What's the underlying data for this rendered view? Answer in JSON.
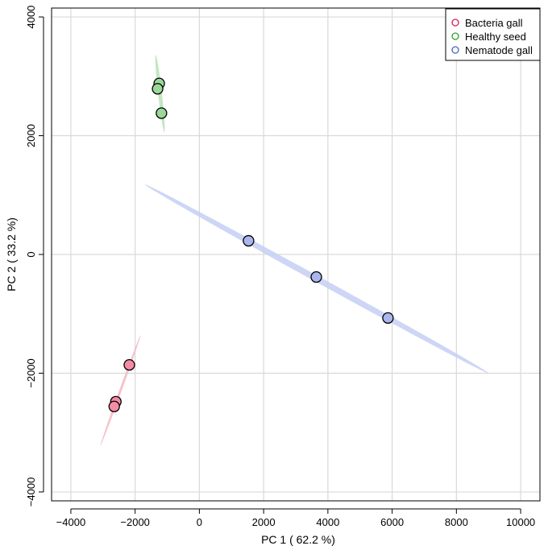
{
  "chart_data": {
    "type": "scatter",
    "title": "",
    "xlabel": "PC 1 ( 62.2 %)",
    "ylabel": "PC 2 ( 33.2 %)",
    "xlim": [
      -4600,
      10600
    ],
    "ylim": [
      -4150,
      4150
    ],
    "xticks": [
      -4000,
      -2000,
      0,
      2000,
      4000,
      6000,
      8000,
      10000
    ],
    "yticks": [
      -4000,
      -2000,
      0,
      2000,
      4000
    ],
    "xtick_labels": [
      "−4000",
      "−2000",
      "0",
      "2000",
      "4000",
      "6000",
      "8000",
      "10000"
    ],
    "ytick_labels": [
      "−4000",
      "−2000",
      "0",
      "2000",
      "4000"
    ],
    "grid": true,
    "legend_position": "top-right",
    "series": [
      {
        "name": "Bacteria gall",
        "color": "#d81b60",
        "fill": "#f48ca3",
        "ellipse_color": "#f2b8c4",
        "points": [
          {
            "x": -2600,
            "y": -2480
          },
          {
            "x": -2650,
            "y": -2560
          },
          {
            "x": -2180,
            "y": -1860
          }
        ],
        "ellipse": {
          "from": [
            -3080,
            -3220
          ],
          "to": [
            -1830,
            -1360
          ],
          "width": 70
        }
      },
      {
        "name": "Healthy seed",
        "color": "#2ca02c",
        "fill": "#9ad89a",
        "ellipse_color": "#b9e2b9",
        "points": [
          {
            "x": -1250,
            "y": 2880
          },
          {
            "x": -1300,
            "y": 2790
          },
          {
            "x": -1180,
            "y": 2380
          }
        ],
        "ellipse": {
          "from": [
            -1360,
            3360
          ],
          "to": [
            -1090,
            2060
          ],
          "width": 120
        }
      },
      {
        "name": "Nematode gall",
        "color": "#4a61c8",
        "fill": "#aab6ec",
        "ellipse_color": "#c6cff4",
        "points": [
          {
            "x": 1530,
            "y": 230
          },
          {
            "x": 3640,
            "y": -380
          },
          {
            "x": 5870,
            "y": -1070
          }
        ],
        "ellipse": {
          "from": [
            -1700,
            1180
          ],
          "to": [
            9000,
            -2000
          ],
          "width": 190
        }
      }
    ]
  }
}
